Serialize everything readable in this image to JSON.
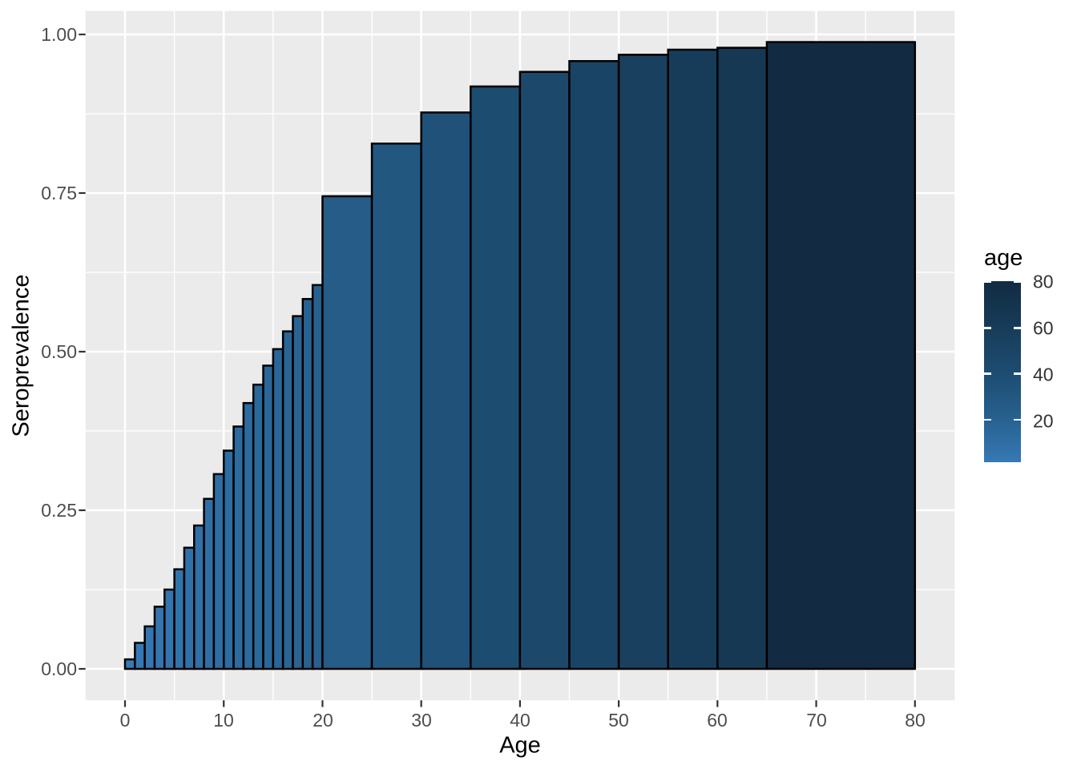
{
  "figure": {
    "background_color": "#FFFFFF",
    "panel_background_color": "#EBEBEB",
    "grid_color": "#FFFFFF",
    "tick_mark_color": "#333333",
    "axis_text_color": "#4D4D4D"
  },
  "y_axis": {
    "title": "Seroprevalence",
    "tick_labels": [
      "1.00",
      "0.75",
      "0.50",
      "0.25",
      "0.00"
    ],
    "tick_values": [
      1.0,
      0.75,
      0.5,
      0.25,
      0.0
    ],
    "minor_values": [
      0.875,
      0.625,
      0.375,
      0.125
    ]
  },
  "x_axis": {
    "title": "Age",
    "tick_labels": [
      "0",
      "10",
      "20",
      "30",
      "40",
      "50",
      "60",
      "70",
      "80"
    ],
    "tick_values": [
      0,
      10,
      20,
      30,
      40,
      50,
      60,
      70,
      80
    ],
    "minor_values": [
      5,
      15,
      25,
      35,
      45,
      55,
      65,
      75
    ]
  },
  "legend": {
    "title": "age",
    "labels": [
      "80",
      "60",
      "40",
      "20"
    ],
    "label_values": [
      80,
      60,
      40,
      20
    ],
    "range": [
      1,
      80
    ]
  },
  "chart_data": {
    "type": "bar",
    "title": "",
    "xlabel": "Age",
    "ylabel": "Seroprevalence",
    "x_range_shown": [
      -4,
      84
    ],
    "y_range_shown": [
      -0.05,
      1.037
    ],
    "grid": "on",
    "legend_position": "right",
    "fill_mapped_to": "age (upper bound of age bin)",
    "bar_border_color": "#000000",
    "gradient_stops": [
      [
        1,
        "#3679B5"
      ],
      [
        20,
        "#27618F"
      ],
      [
        40,
        "#1D4C71"
      ],
      [
        60,
        "#173C59"
      ],
      [
        80,
        "#122B42"
      ]
    ],
    "bars": [
      {
        "age_from": 0,
        "age_to": 1,
        "value": 0.015
      },
      {
        "age_from": 1,
        "age_to": 2,
        "value": 0.041
      },
      {
        "age_from": 2,
        "age_to": 3,
        "value": 0.067
      },
      {
        "age_from": 3,
        "age_to": 4,
        "value": 0.098
      },
      {
        "age_from": 4,
        "age_to": 5,
        "value": 0.125
      },
      {
        "age_from": 5,
        "age_to": 6,
        "value": 0.157
      },
      {
        "age_from": 6,
        "age_to": 7,
        "value": 0.191
      },
      {
        "age_from": 7,
        "age_to": 8,
        "value": 0.226
      },
      {
        "age_from": 8,
        "age_to": 9,
        "value": 0.268
      },
      {
        "age_from": 9,
        "age_to": 10,
        "value": 0.307
      },
      {
        "age_from": 10,
        "age_to": 11,
        "value": 0.344
      },
      {
        "age_from": 11,
        "age_to": 12,
        "value": 0.382
      },
      {
        "age_from": 12,
        "age_to": 13,
        "value": 0.419
      },
      {
        "age_from": 13,
        "age_to": 14,
        "value": 0.448
      },
      {
        "age_from": 14,
        "age_to": 15,
        "value": 0.478
      },
      {
        "age_from": 15,
        "age_to": 16,
        "value": 0.504
      },
      {
        "age_from": 16,
        "age_to": 17,
        "value": 0.532
      },
      {
        "age_from": 17,
        "age_to": 18,
        "value": 0.556
      },
      {
        "age_from": 18,
        "age_to": 19,
        "value": 0.583
      },
      {
        "age_from": 19,
        "age_to": 20,
        "value": 0.605
      },
      {
        "age_from": 20,
        "age_to": 25,
        "value": 0.745
      },
      {
        "age_from": 25,
        "age_to": 30,
        "value": 0.828
      },
      {
        "age_from": 30,
        "age_to": 35,
        "value": 0.877
      },
      {
        "age_from": 35,
        "age_to": 40,
        "value": 0.918
      },
      {
        "age_from": 40,
        "age_to": 45,
        "value": 0.941
      },
      {
        "age_from": 45,
        "age_to": 50,
        "value": 0.958
      },
      {
        "age_from": 50,
        "age_to": 55,
        "value": 0.968
      },
      {
        "age_from": 55,
        "age_to": 60,
        "value": 0.976
      },
      {
        "age_from": 60,
        "age_to": 65,
        "value": 0.979
      },
      {
        "age_from": 65,
        "age_to": 80,
        "value": 0.988
      }
    ]
  }
}
